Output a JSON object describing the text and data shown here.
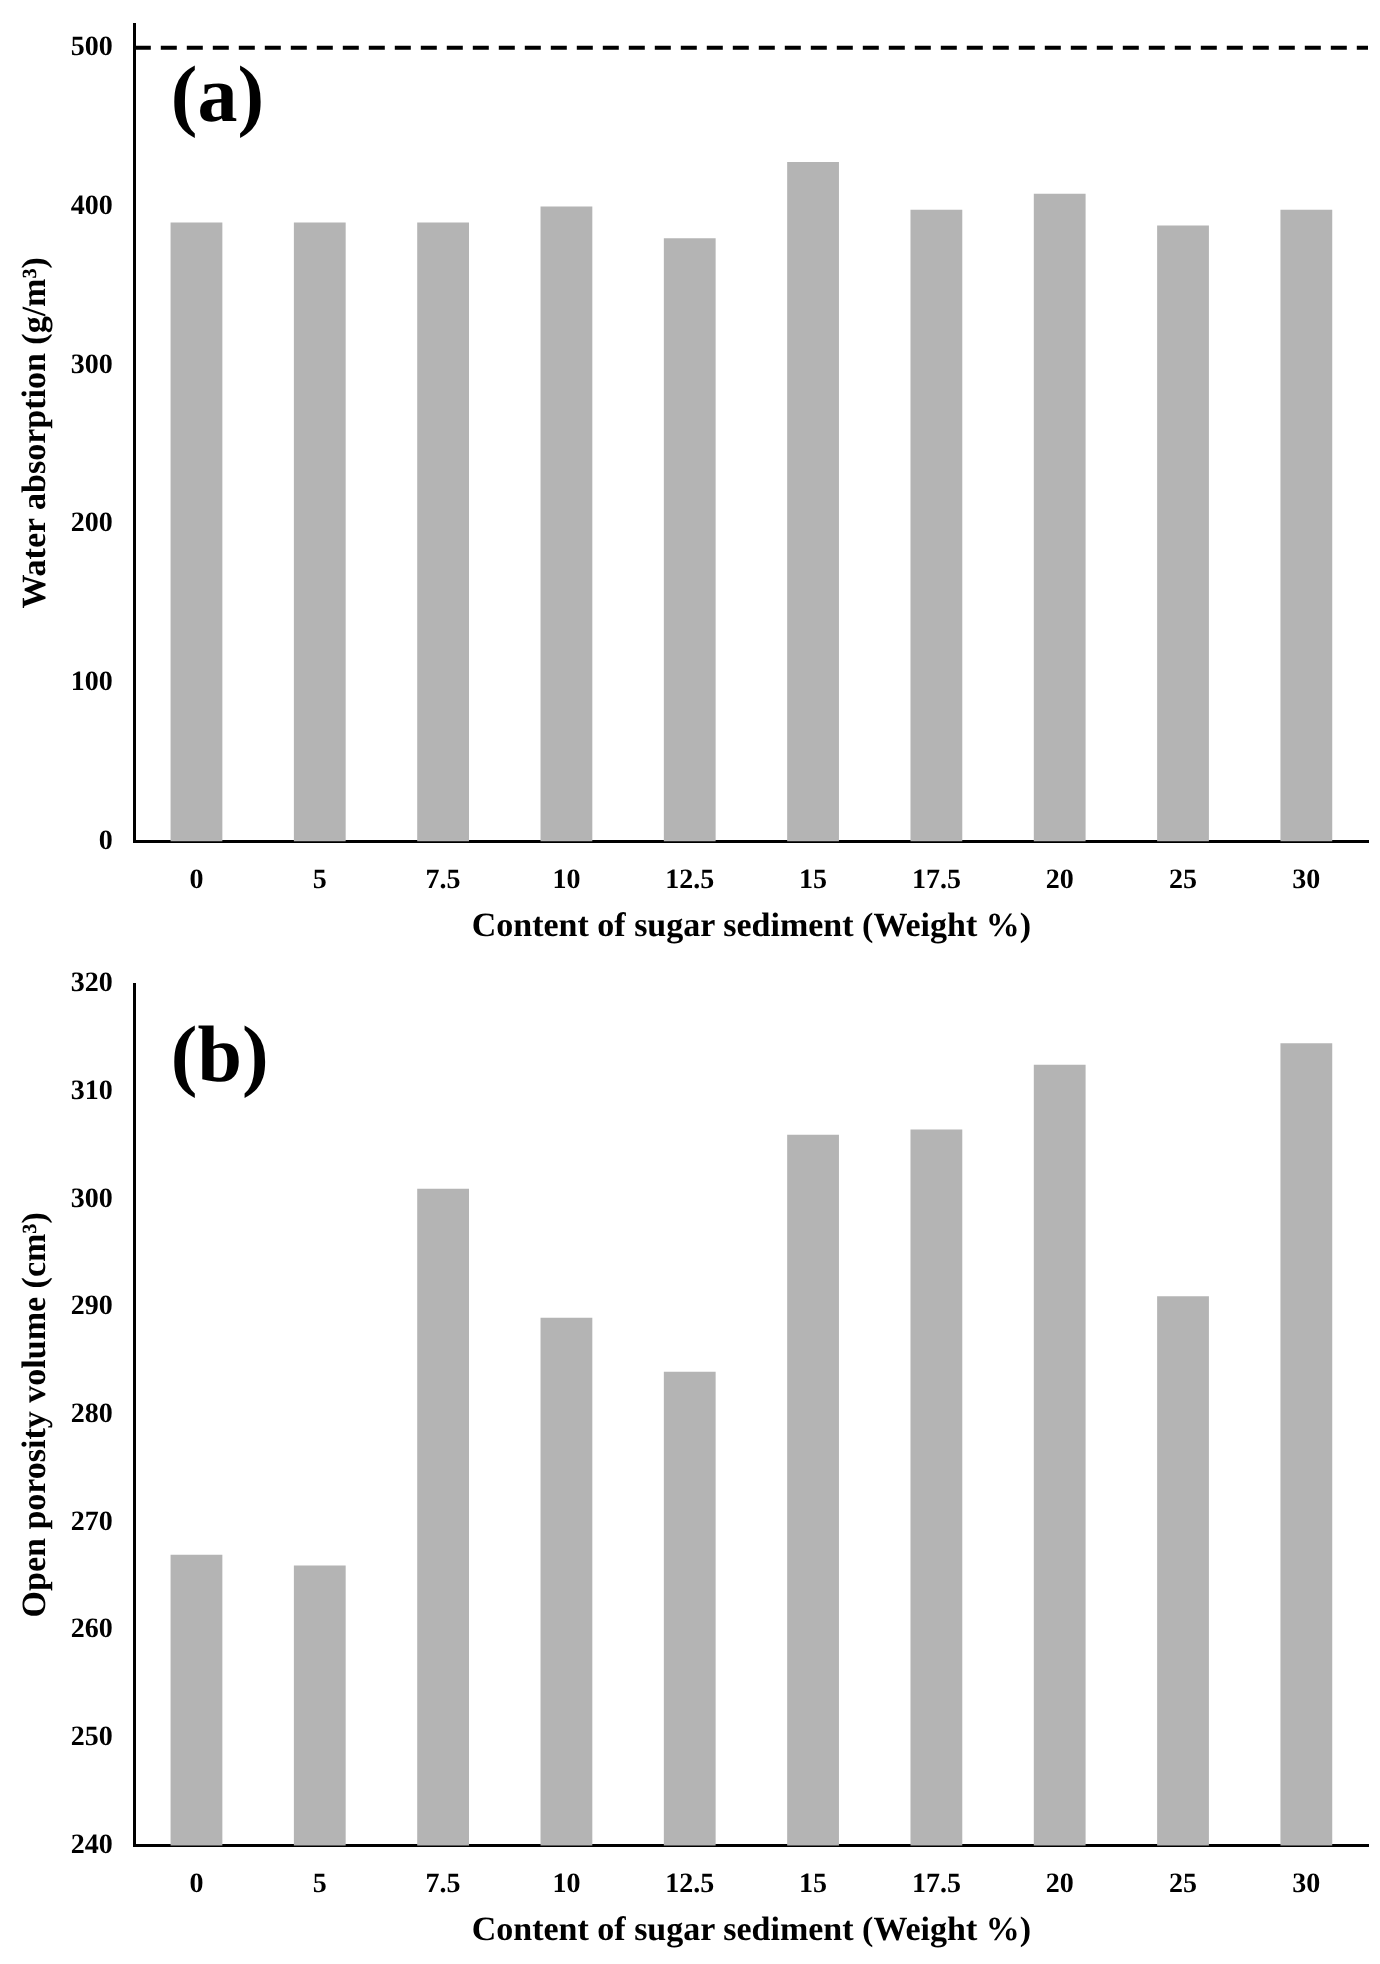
{
  "chart_data": [
    {
      "type": "bar",
      "categories": [
        "0",
        "5",
        "7.5",
        "10",
        "12.5",
        "15",
        "17.5",
        "20",
        "25",
        "30"
      ],
      "values": [
        390,
        390,
        390,
        400,
        380,
        428,
        398,
        408,
        388,
        398
      ],
      "color": "#b4b4b4",
      "ylim": [
        0,
        515
      ],
      "yticks": [
        0,
        100,
        200,
        300,
        400,
        500
      ],
      "xlabel": "Content of sugar sediment (Weight %)",
      "ylabel": "Water absorption (g/m³)",
      "annotations": [
        "(a)"
      ],
      "ref_lines": [
        {
          "axis": "y",
          "value": 500,
          "color": "#000000",
          "line_style": "dashed"
        }
      ],
      "grid": false,
      "legend": false
    },
    {
      "type": "bar",
      "categories": [
        "0",
        "5",
        "7.5",
        "10",
        "12.5",
        "15",
        "17.5",
        "20",
        "25",
        "30"
      ],
      "values": [
        267,
        266,
        301,
        289,
        284,
        306,
        306.5,
        312.5,
        291,
        314.5
      ],
      "color": "#b4b4b4",
      "ylim": [
        240,
        320
      ],
      "yticks": [
        240,
        250,
        260,
        270,
        280,
        290,
        300,
        310,
        320
      ],
      "xlabel": "Content of sugar sediment (Weight %)",
      "ylabel": "Open porosity volume (cm³)",
      "annotations": [
        "(b)"
      ],
      "grid": false,
      "legend": false
    }
  ]
}
